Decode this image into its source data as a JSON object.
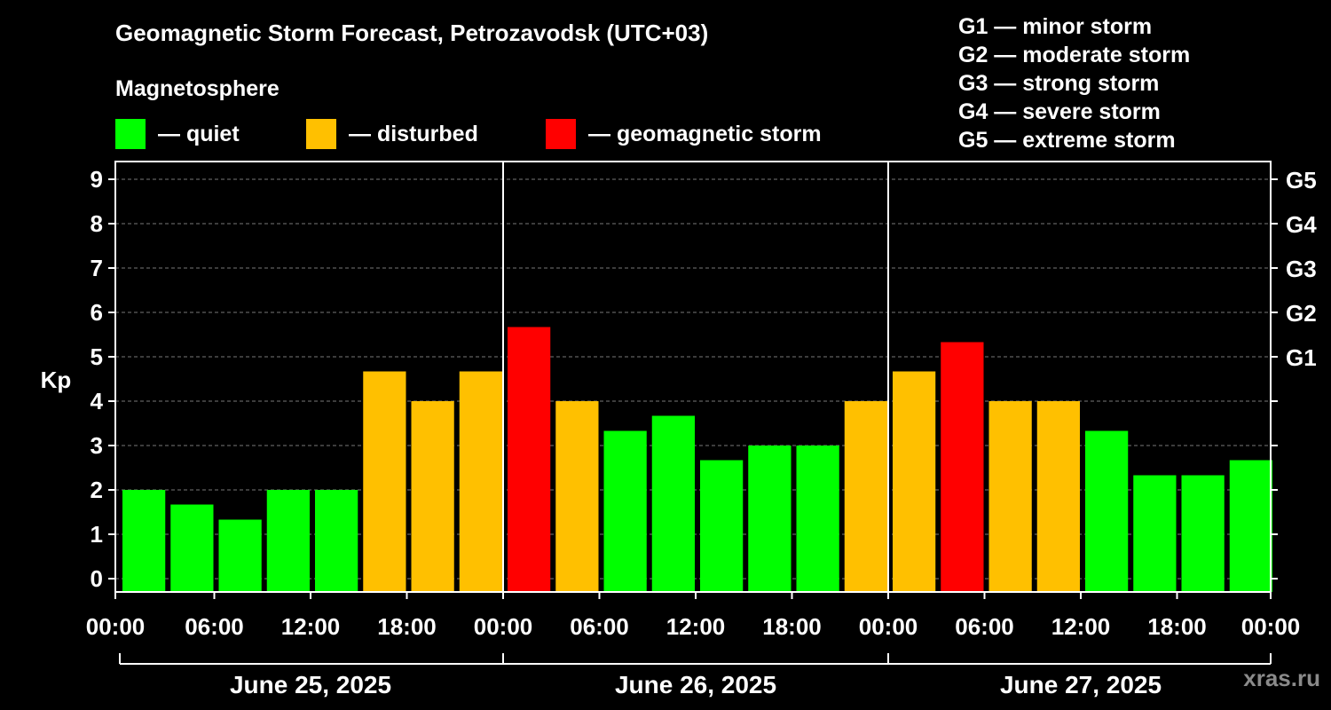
{
  "title": "Geomagnetic Storm Forecast, Petrozavodsk (UTC+03)",
  "subtitle": "Magnetosphere",
  "legend": [
    {
      "label": "— quiet",
      "color": "#00ff00"
    },
    {
      "label": "— disturbed",
      "color": "#ffc000"
    },
    {
      "label": "— geomagnetic storm",
      "color": "#ff0000"
    }
  ],
  "g_legend": [
    "G1 — minor storm",
    "G2 — moderate storm",
    "G3 — strong storm",
    "G4 — severe storm",
    "G5 — extreme storm"
  ],
  "watermark": "xras.ru",
  "chart_data": {
    "type": "bar",
    "ylabel": "Kp",
    "ylim": [
      0,
      9
    ],
    "yticks": [
      "0",
      "1",
      "2",
      "3",
      "4",
      "5",
      "6",
      "7",
      "8",
      "9"
    ],
    "right_ticks": [
      {
        "kp": 5,
        "label": "G1"
      },
      {
        "kp": 6,
        "label": "G2"
      },
      {
        "kp": 7,
        "label": "G3"
      },
      {
        "kp": 8,
        "label": "G4"
      },
      {
        "kp": 9,
        "label": "G5"
      }
    ],
    "xtick_labels": [
      "00:00",
      "06:00",
      "12:00",
      "18:00",
      "00:00",
      "06:00",
      "12:00",
      "18:00",
      "00:00",
      "06:00",
      "12:00",
      "18:00",
      "00:00"
    ],
    "days": [
      "June 25, 2025",
      "June 26, 2025",
      "June 27, 2025"
    ],
    "grid": true,
    "colors": {
      "quiet": "#00ff00",
      "disturbed": "#ffc000",
      "storm": "#ff0000"
    },
    "values": [
      2.0,
      1.67,
      1.33,
      2.0,
      2.0,
      4.67,
      4.0,
      4.67,
      5.67,
      4.0,
      3.33,
      3.67,
      2.67,
      3.0,
      3.0,
      4.0,
      4.67,
      5.33,
      4.0,
      4.0,
      3.33,
      2.33,
      2.33,
      2.67
    ],
    "levels": [
      "quiet",
      "quiet",
      "quiet",
      "quiet",
      "quiet",
      "disturbed",
      "disturbed",
      "disturbed",
      "storm",
      "disturbed",
      "quiet",
      "quiet",
      "quiet",
      "quiet",
      "quiet",
      "disturbed",
      "disturbed",
      "storm",
      "disturbed",
      "disturbed",
      "quiet",
      "quiet",
      "quiet",
      "quiet"
    ]
  }
}
